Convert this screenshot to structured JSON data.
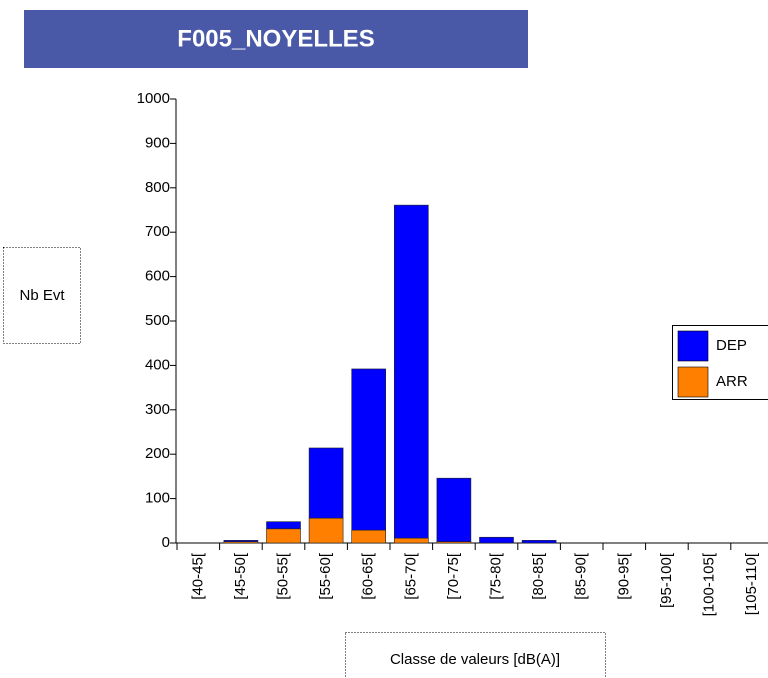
{
  "chart_data": {
    "type": "stacked_bar",
    "title": "F005_NOYELLES",
    "y_label": "Nb Evt",
    "x_label": "Classe de valeurs [dB(A)]",
    "categories": [
      "[40-45[",
      "[45-50[",
      "[50-55[",
      "[55-60[",
      "[60-65[",
      "[65-70[",
      "[70-75[",
      "[75-80[",
      "[80-85[",
      "[85-90[",
      "[90-95[",
      "[95-100[",
      "[100-105[",
      "[105-110["
    ],
    "series": [
      {
        "name": "DEP",
        "color": "#0000ff",
        "values": [
          0,
          3,
          16,
          158,
          363,
          750,
          143,
          13,
          6,
          0,
          0,
          0,
          0,
          0
        ]
      },
      {
        "name": "ARR",
        "color": "#ff8000",
        "values": [
          0,
          3,
          32,
          56,
          29,
          11,
          3,
          0,
          0,
          0,
          0,
          0,
          0,
          0
        ]
      }
    ],
    "ylim": [
      0,
      1000
    ],
    "yticks": [
      0,
      100,
      200,
      300,
      400,
      500,
      600,
      700,
      800,
      900,
      1000
    ],
    "grid": false,
    "legend": "right"
  }
}
